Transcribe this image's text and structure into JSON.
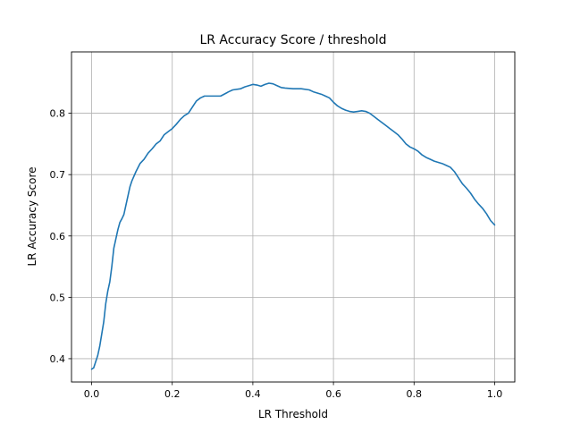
{
  "chart_data": {
    "type": "line",
    "title": "LR Accuracy Score / threshold",
    "xlabel": "LR Threshold",
    "ylabel": "LR Accuracy Score",
    "xlim": [
      -0.05,
      1.05
    ],
    "ylim": [
      0.362,
      0.9
    ],
    "xticks": [
      0.0,
      0.2,
      0.4,
      0.6,
      0.8,
      1.0
    ],
    "xtick_labels": [
      "0.0",
      "0.2",
      "0.4",
      "0.6",
      "0.8",
      "1.0"
    ],
    "yticks": [
      0.4,
      0.5,
      0.6,
      0.7,
      0.8
    ],
    "ytick_labels": [
      "0.4",
      "0.5",
      "0.6",
      "0.7",
      "0.8"
    ],
    "grid": true,
    "legend": "none",
    "series": [
      {
        "color": "#1f77b4",
        "x": [
          0.0,
          0.005,
          0.01,
          0.015,
          0.02,
          0.025,
          0.03,
          0.035,
          0.04,
          0.045,
          0.05,
          0.055,
          0.06,
          0.065,
          0.07,
          0.075,
          0.08,
          0.085,
          0.09,
          0.095,
          0.1,
          0.11,
          0.12,
          0.13,
          0.14,
          0.15,
          0.16,
          0.17,
          0.18,
          0.19,
          0.2,
          0.21,
          0.22,
          0.23,
          0.24,
          0.25,
          0.26,
          0.27,
          0.28,
          0.3,
          0.32,
          0.34,
          0.35,
          0.37,
          0.38,
          0.39,
          0.4,
          0.41,
          0.42,
          0.43,
          0.44,
          0.45,
          0.46,
          0.47,
          0.48,
          0.5,
          0.52,
          0.54,
          0.55,
          0.57,
          0.58,
          0.59,
          0.6,
          0.61,
          0.62,
          0.63,
          0.64,
          0.65,
          0.66,
          0.67,
          0.68,
          0.69,
          0.7,
          0.71,
          0.72,
          0.73,
          0.74,
          0.75,
          0.76,
          0.77,
          0.78,
          0.79,
          0.8,
          0.81,
          0.82,
          0.83,
          0.84,
          0.85,
          0.86,
          0.87,
          0.88,
          0.89,
          0.9,
          0.91,
          0.92,
          0.93,
          0.94,
          0.95,
          0.96,
          0.97,
          0.98,
          0.99,
          1.0
        ],
        "y": [
          0.383,
          0.385,
          0.395,
          0.405,
          0.42,
          0.44,
          0.46,
          0.49,
          0.51,
          0.525,
          0.55,
          0.58,
          0.595,
          0.61,
          0.622,
          0.628,
          0.635,
          0.65,
          0.665,
          0.68,
          0.69,
          0.705,
          0.718,
          0.725,
          0.735,
          0.742,
          0.75,
          0.755,
          0.765,
          0.77,
          0.775,
          0.782,
          0.79,
          0.796,
          0.8,
          0.81,
          0.82,
          0.825,
          0.828,
          0.828,
          0.828,
          0.835,
          0.838,
          0.84,
          0.843,
          0.845,
          0.847,
          0.846,
          0.844,
          0.847,
          0.849,
          0.848,
          0.845,
          0.842,
          0.841,
          0.84,
          0.84,
          0.838,
          0.835,
          0.831,
          0.828,
          0.825,
          0.818,
          0.812,
          0.808,
          0.805,
          0.803,
          0.802,
          0.803,
          0.804,
          0.803,
          0.8,
          0.795,
          0.79,
          0.785,
          0.78,
          0.775,
          0.77,
          0.765,
          0.758,
          0.75,
          0.745,
          0.742,
          0.738,
          0.732,
          0.728,
          0.725,
          0.722,
          0.72,
          0.718,
          0.715,
          0.712,
          0.705,
          0.695,
          0.685,
          0.678,
          0.67,
          0.66,
          0.652,
          0.645,
          0.636,
          0.625,
          0.618
        ]
      }
    ]
  }
}
